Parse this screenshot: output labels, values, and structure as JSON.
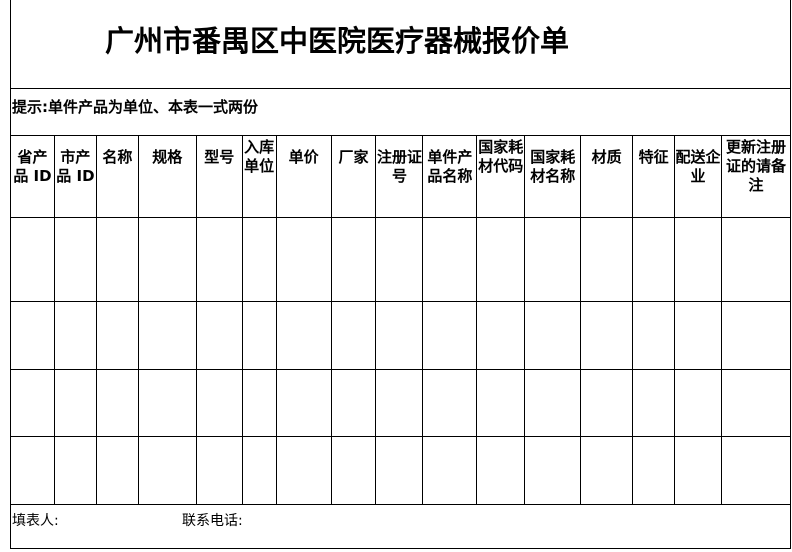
{
  "title": "广州市番禺区中医院医疗器械报价单",
  "tip": "提示:单件产品为单位、本表一式两份",
  "columns": [
    "省产品 ID",
    "市产品 ID",
    "名称",
    "规格",
    "型号",
    "入库单位",
    "单价",
    "厂家",
    "注册证号",
    "单件产品名称",
    "国家耗材代码",
    "国家耗材名称",
    "材质",
    "特征",
    "配送企业",
    "更新注册证的请备注"
  ],
  "rows": 4,
  "footer": {
    "filler_label": "填表人:",
    "phone_label": "联系电话:"
  }
}
